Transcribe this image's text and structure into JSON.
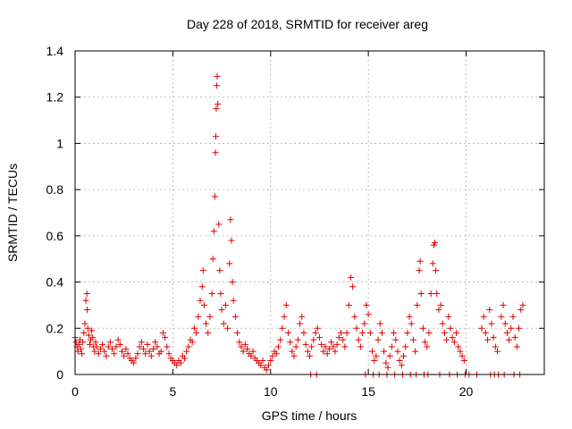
{
  "chart_data": {
    "type": "scatter",
    "title": "Day 228 of 2018, SRMTID for receiver areg",
    "xlabel": "GPS time / hours",
    "ylabel": "SRMTID / TECUs",
    "xlim": [
      0,
      24
    ],
    "ylim": [
      0,
      1.4
    ],
    "xticks": [
      0,
      5,
      10,
      15,
      20
    ],
    "xtick_labels": [
      "0",
      "5",
      "10",
      "15",
      "20"
    ],
    "yticks": [
      0,
      0.2,
      0.4,
      0.6,
      0.8,
      1,
      1.2,
      1.4
    ],
    "ytick_labels": [
      "0",
      "0.2",
      "0.4",
      "0.6",
      "0.8",
      "1",
      "1.2",
      "1.4"
    ],
    "grid": true,
    "marker": "+",
    "marker_color": "#dd0000",
    "series": [
      {
        "name": "SRMTID",
        "points": [
          [
            0.0,
            0.16
          ],
          [
            0.05,
            0.14
          ],
          [
            0.1,
            0.12
          ],
          [
            0.15,
            0.1
          ],
          [
            0.2,
            0.13
          ],
          [
            0.25,
            0.15
          ],
          [
            0.3,
            0.11
          ],
          [
            0.35,
            0.09
          ],
          [
            0.4,
            0.14
          ],
          [
            0.45,
            0.18
          ],
          [
            0.5,
            0.22
          ],
          [
            0.55,
            0.32
          ],
          [
            0.6,
            0.35
          ],
          [
            0.62,
            0.28
          ],
          [
            0.65,
            0.2
          ],
          [
            0.7,
            0.17
          ],
          [
            0.75,
            0.13
          ],
          [
            0.8,
            0.15
          ],
          [
            0.85,
            0.19
          ],
          [
            0.9,
            0.16
          ],
          [
            0.95,
            0.12
          ],
          [
            1.0,
            0.1
          ],
          [
            1.05,
            0.14
          ],
          [
            1.1,
            0.12
          ],
          [
            1.2,
            0.09
          ],
          [
            1.3,
            0.11
          ],
          [
            1.4,
            0.13
          ],
          [
            1.5,
            0.1
          ],
          [
            1.6,
            0.08
          ],
          [
            1.7,
            0.12
          ],
          [
            1.8,
            0.14
          ],
          [
            1.9,
            0.11
          ],
          [
            2.0,
            0.09
          ],
          [
            2.1,
            0.12
          ],
          [
            2.2,
            0.15
          ],
          [
            2.3,
            0.13
          ],
          [
            2.4,
            0.1
          ],
          [
            2.5,
            0.08
          ],
          [
            2.6,
            0.11
          ],
          [
            2.7,
            0.09
          ],
          [
            2.8,
            0.07
          ],
          [
            2.9,
            0.06
          ],
          [
            3.0,
            0.05
          ],
          [
            3.1,
            0.07
          ],
          [
            3.2,
            0.09
          ],
          [
            3.3,
            0.12
          ],
          [
            3.4,
            0.14
          ],
          [
            3.5,
            0.11
          ],
          [
            3.6,
            0.09
          ],
          [
            3.7,
            0.13
          ],
          [
            3.8,
            0.1
          ],
          [
            3.9,
            0.08
          ],
          [
            4.0,
            0.11
          ],
          [
            4.1,
            0.14
          ],
          [
            4.2,
            0.12
          ],
          [
            4.3,
            0.09
          ],
          [
            4.4,
            0.1
          ],
          [
            4.5,
            0.18
          ],
          [
            4.6,
            0.16
          ],
          [
            4.7,
            0.12
          ],
          [
            4.8,
            0.09
          ],
          [
            4.9,
            0.07
          ],
          [
            5.0,
            0.06
          ],
          [
            5.1,
            0.05
          ],
          [
            5.2,
            0.04
          ],
          [
            5.3,
            0.06
          ],
          [
            5.4,
            0.05
          ],
          [
            5.5,
            0.08
          ],
          [
            5.6,
            0.07
          ],
          [
            5.7,
            0.1
          ],
          [
            5.8,
            0.12
          ],
          [
            5.9,
            0.15
          ],
          [
            6.0,
            0.14
          ],
          [
            6.1,
            0.2
          ],
          [
            6.2,
            0.18
          ],
          [
            6.3,
            0.25
          ],
          [
            6.4,
            0.32
          ],
          [
            6.5,
            0.38
          ],
          [
            6.55,
            0.45
          ],
          [
            6.6,
            0.3
          ],
          [
            6.7,
            0.22
          ],
          [
            6.8,
            0.18
          ],
          [
            6.9,
            0.25
          ],
          [
            7.0,
            0.35
          ],
          [
            7.05,
            0.5
          ],
          [
            7.1,
            0.62
          ],
          [
            7.15,
            0.77
          ],
          [
            7.18,
            0.96
          ],
          [
            7.2,
            1.03
          ],
          [
            7.22,
            1.15
          ],
          [
            7.25,
            1.25
          ],
          [
            7.27,
            1.29
          ],
          [
            7.3,
            1.17
          ],
          [
            7.35,
            0.65
          ],
          [
            7.4,
            0.45
          ],
          [
            7.45,
            0.35
          ],
          [
            7.5,
            0.28
          ],
          [
            7.6,
            0.22
          ],
          [
            7.7,
            0.3
          ],
          [
            7.8,
            0.2
          ],
          [
            7.9,
            0.48
          ],
          [
            7.95,
            0.67
          ],
          [
            8.0,
            0.58
          ],
          [
            8.05,
            0.4
          ],
          [
            8.1,
            0.32
          ],
          [
            8.2,
            0.25
          ],
          [
            8.3,
            0.18
          ],
          [
            8.4,
            0.14
          ],
          [
            8.5,
            0.12
          ],
          [
            8.6,
            0.1
          ],
          [
            8.7,
            0.13
          ],
          [
            8.8,
            0.11
          ],
          [
            8.9,
            0.09
          ],
          [
            9.0,
            0.08
          ],
          [
            9.1,
            0.1
          ],
          [
            9.2,
            0.07
          ],
          [
            9.3,
            0.06
          ],
          [
            9.4,
            0.05
          ],
          [
            9.5,
            0.04
          ],
          [
            9.6,
            0.06
          ],
          [
            9.7,
            0.03
          ],
          [
            9.8,
            0.02
          ],
          [
            9.9,
            0.04
          ],
          [
            10.0,
            0.06
          ],
          [
            10.1,
            0.08
          ],
          [
            10.2,
            0.1
          ],
          [
            10.3,
            0.09
          ],
          [
            10.4,
            0.12
          ],
          [
            10.5,
            0.15
          ],
          [
            10.6,
            0.2
          ],
          [
            10.7,
            0.25
          ],
          [
            10.8,
            0.3
          ],
          [
            10.9,
            0.18
          ],
          [
            11.0,
            0.14
          ],
          [
            11.1,
            0.1
          ],
          [
            11.2,
            0.08
          ],
          [
            11.3,
            0.12
          ],
          [
            11.4,
            0.15
          ],
          [
            11.5,
            0.22
          ],
          [
            11.6,
            0.25
          ],
          [
            11.7,
            0.18
          ],
          [
            11.8,
            0.13
          ],
          [
            11.9,
            0.1
          ],
          [
            12.0,
            0.08
          ],
          [
            12.1,
            0.12
          ],
          [
            12.2,
            0.15
          ],
          [
            12.3,
            0.18
          ],
          [
            12.4,
            0.2
          ],
          [
            12.5,
            0.16
          ],
          [
            12.6,
            0.13
          ],
          [
            12.7,
            0.1
          ],
          [
            12.8,
            0.12
          ],
          [
            12.9,
            0.09
          ],
          [
            13.0,
            0.11
          ],
          [
            13.1,
            0.14
          ],
          [
            13.2,
            0.12
          ],
          [
            13.3,
            0.1
          ],
          [
            13.4,
            0.13
          ],
          [
            13.5,
            0.16
          ],
          [
            13.6,
            0.18
          ],
          [
            13.7,
            0.15
          ],
          [
            13.8,
            0.12
          ],
          [
            13.9,
            0.18
          ],
          [
            14.0,
            0.3
          ],
          [
            14.1,
            0.42
          ],
          [
            14.2,
            0.38
          ],
          [
            14.3,
            0.25
          ],
          [
            14.4,
            0.2
          ],
          [
            14.5,
            0.15
          ],
          [
            14.6,
            0.12
          ],
          [
            14.7,
            0.18
          ],
          [
            14.8,
            0.22
          ],
          [
            14.9,
            0.3
          ],
          [
            15.0,
            0.26
          ],
          [
            15.1,
            0.18
          ],
          [
            15.2,
            0.1
          ],
          [
            15.3,
            0.06
          ],
          [
            15.4,
            0.08
          ],
          [
            15.5,
            0.15
          ],
          [
            15.6,
            0.22
          ],
          [
            15.7,
            0.18
          ],
          [
            15.8,
            0.1
          ],
          [
            15.9,
            0.05
          ],
          [
            16.0,
            0.03
          ],
          [
            16.1,
            0.08
          ],
          [
            16.2,
            0.12
          ],
          [
            16.3,
            0.18
          ],
          [
            16.4,
            0.15
          ],
          [
            16.5,
            0.1
          ],
          [
            16.6,
            0.06
          ],
          [
            16.7,
            0.04
          ],
          [
            16.8,
            0.08
          ],
          [
            16.9,
            0.12
          ],
          [
            17.0,
            0.18
          ],
          [
            17.1,
            0.25
          ],
          [
            17.2,
            0.22
          ],
          [
            17.3,
            0.15
          ],
          [
            17.4,
            0.1
          ],
          [
            17.5,
            0.3
          ],
          [
            17.6,
            0.45
          ],
          [
            17.65,
            0.49
          ],
          [
            17.7,
            0.35
          ],
          [
            17.8,
            0.2
          ],
          [
            17.9,
            0.14
          ],
          [
            18.0,
            0.12
          ],
          [
            18.1,
            0.18
          ],
          [
            18.2,
            0.35
          ],
          [
            18.3,
            0.48
          ],
          [
            18.35,
            0.56
          ],
          [
            18.4,
            0.57
          ],
          [
            18.45,
            0.45
          ],
          [
            18.5,
            0.35
          ],
          [
            18.6,
            0.28
          ],
          [
            18.7,
            0.3
          ],
          [
            18.8,
            0.22
          ],
          [
            18.9,
            0.18
          ],
          [
            19.0,
            0.15
          ],
          [
            19.1,
            0.25
          ],
          [
            19.2,
            0.2
          ],
          [
            19.3,
            0.16
          ],
          [
            19.4,
            0.14
          ],
          [
            19.5,
            0.18
          ],
          [
            19.6,
            0.12
          ],
          [
            19.7,
            0.1
          ],
          [
            19.8,
            0.08
          ],
          [
            19.9,
            0.06
          ],
          [
            20.8,
            0.2
          ],
          [
            20.9,
            0.25
          ],
          [
            21.0,
            0.18
          ],
          [
            21.1,
            0.15
          ],
          [
            21.2,
            0.28
          ],
          [
            21.3,
            0.22
          ],
          [
            21.4,
            0.16
          ],
          [
            21.5,
            0.12
          ],
          [
            21.6,
            0.1
          ],
          [
            21.8,
            0.25
          ],
          [
            21.9,
            0.3
          ],
          [
            22.0,
            0.22
          ],
          [
            22.1,
            0.18
          ],
          [
            22.2,
            0.15
          ],
          [
            22.3,
            0.2
          ],
          [
            22.4,
            0.25
          ],
          [
            22.5,
            0.16
          ],
          [
            22.6,
            0.12
          ],
          [
            22.7,
            0.2
          ],
          [
            22.8,
            0.28
          ],
          [
            22.9,
            0.3
          ],
          [
            12.05,
            0
          ],
          [
            12.35,
            0
          ],
          [
            14.85,
            0
          ],
          [
            15.25,
            0
          ],
          [
            15.55,
            0
          ],
          [
            15.95,
            0
          ],
          [
            16.35,
            0
          ],
          [
            16.75,
            0
          ],
          [
            17.15,
            0
          ],
          [
            17.45,
            0
          ],
          [
            17.85,
            0
          ],
          [
            18.05,
            0
          ],
          [
            18.65,
            0
          ],
          [
            19.15,
            0
          ],
          [
            19.55,
            0
          ],
          [
            19.95,
            0
          ],
          [
            20.15,
            0
          ],
          [
            20.55,
            0
          ],
          [
            21.25,
            0
          ],
          [
            21.45,
            0
          ],
          [
            21.65,
            0
          ],
          [
            21.95,
            0
          ],
          [
            22.45,
            0
          ],
          [
            22.75,
            0
          ]
        ]
      }
    ]
  }
}
